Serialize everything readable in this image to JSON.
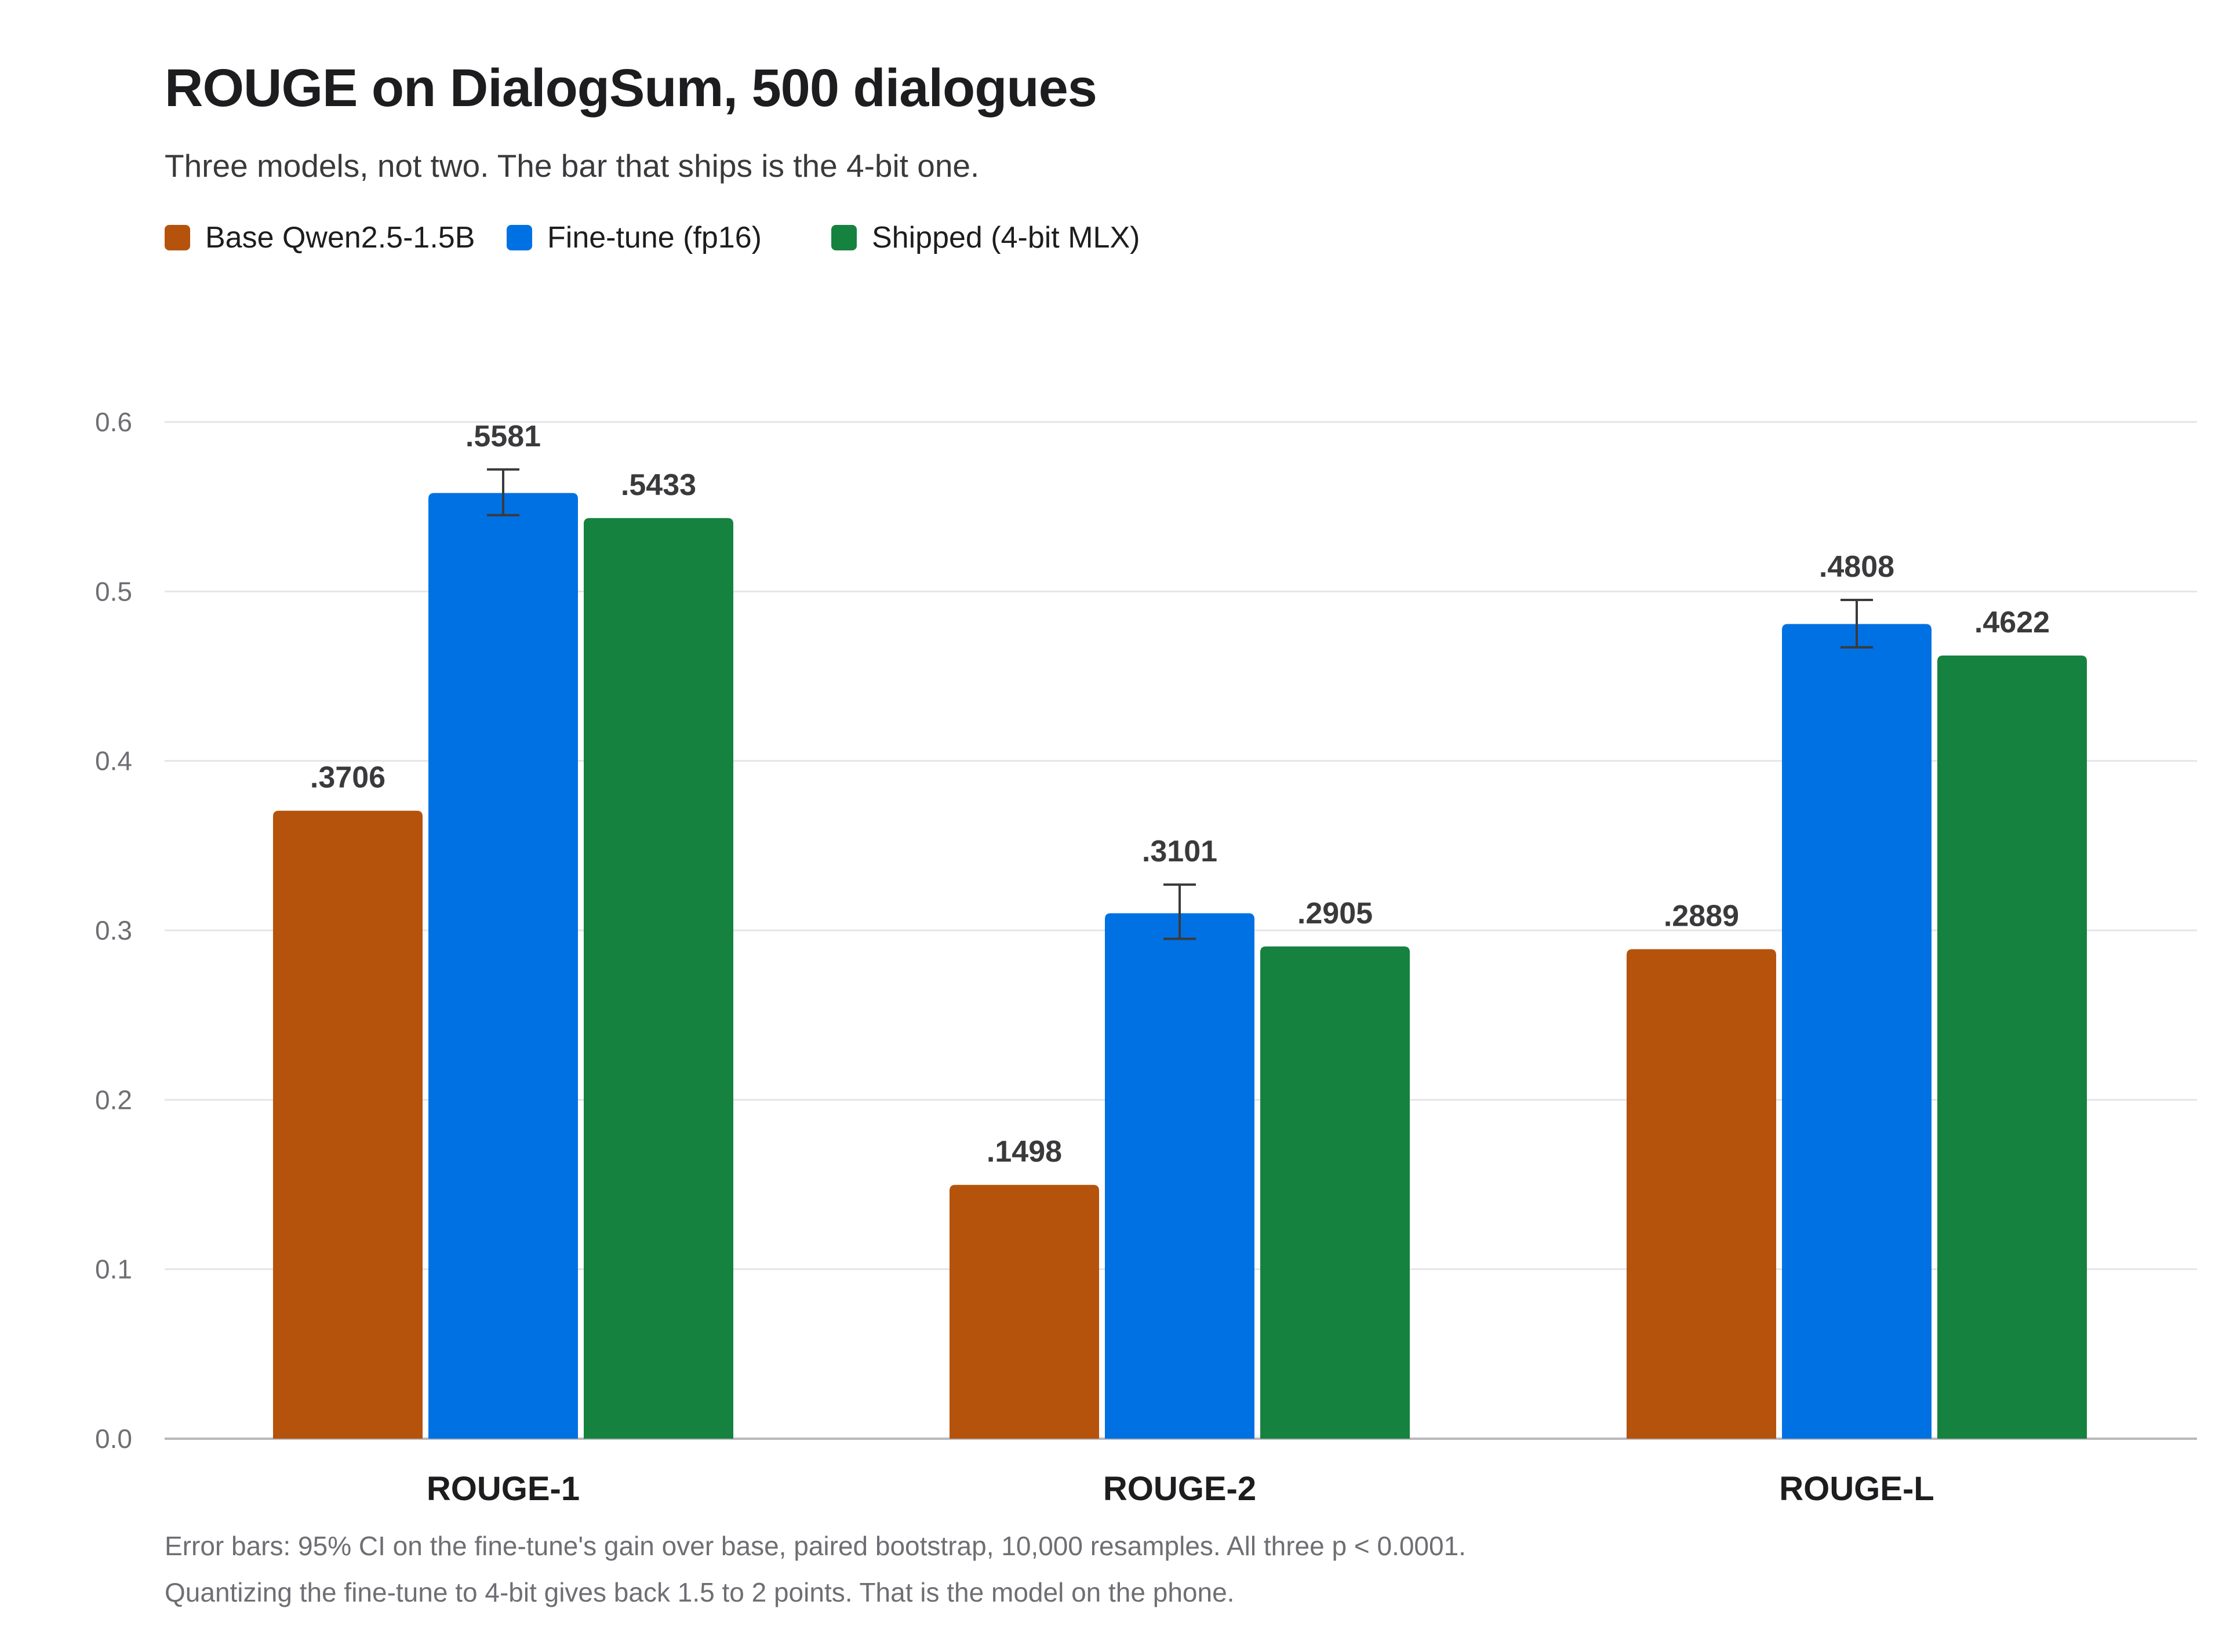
{
  "chart_data": {
    "type": "bar",
    "title": "ROUGE on DialogSum, 500 dialogues",
    "subtitle": "Three models, not two. The bar that ships is the 4-bit one.",
    "xlabel": "",
    "ylabel": "",
    "categories": [
      "ROUGE-1",
      "ROUGE-2",
      "ROUGE-L"
    ],
    "ylim": [
      0,
      0.6
    ],
    "yticks": [
      0.0,
      0.1,
      0.2,
      0.3,
      0.4,
      0.5,
      0.6
    ],
    "ytick_labels": [
      "0.0",
      "0.1",
      "0.2",
      "0.3",
      "0.4",
      "0.5",
      "0.6"
    ],
    "grid": true,
    "legend_position": "top-left",
    "series": [
      {
        "name": "Base Qwen2.5-1.5B",
        "color": "#b5530c",
        "values": [
          0.3706,
          0.1498,
          0.2889
        ],
        "value_labels": [
          ".3706",
          ".1498",
          ".2889"
        ]
      },
      {
        "name": "Fine-tune (fp16)",
        "color": "#0071e3",
        "values": [
          0.5581,
          0.3101,
          0.4808
        ],
        "value_labels": [
          ".5581",
          ".3101",
          ".4808"
        ],
        "error_bars": [
          [
            0.545,
            0.572
          ],
          [
            0.295,
            0.327
          ],
          [
            0.467,
            0.495
          ]
        ]
      },
      {
        "name": "Shipped (4-bit MLX)",
        "color": "#168240",
        "values": [
          0.5433,
          0.2905,
          0.4622
        ],
        "value_labels": [
          ".5433",
          ".2905",
          ".4622"
        ]
      }
    ],
    "footnotes": [
      "Error bars: 95% CI on the fine-tune's gain over base, paired bootstrap, 10,000 resamples. All three p < 0.0001.",
      "Quantizing the fine-tune to 4-bit gives back 1.5 to 2 points. That is the model on the phone."
    ]
  }
}
